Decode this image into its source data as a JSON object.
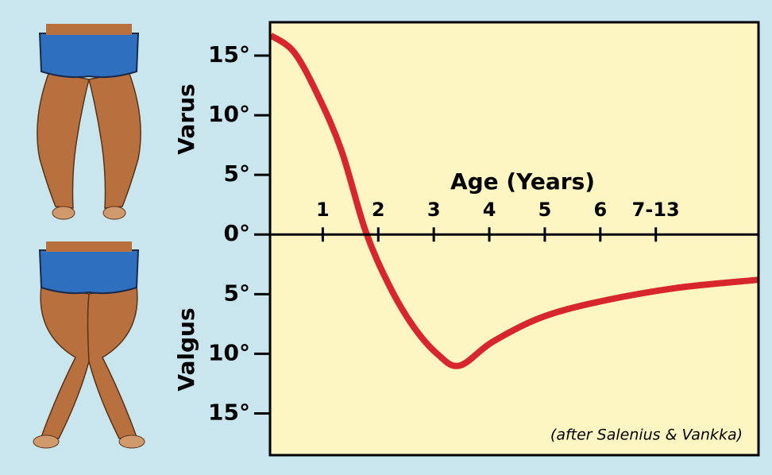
{
  "chart_data": {
    "type": "line",
    "xlabel": "Age (Years)",
    "annotations": [
      "Varus",
      "Valgus",
      "(after Salenius & Vankka)"
    ],
    "x": [
      0.06,
      0.48,
      0.91,
      1.34,
      1.77,
      2.2,
      2.63,
      3.06,
      3.46,
      4.06,
      4.91,
      5.91,
      7.34,
      8.84
    ],
    "series": [
      {
        "color": "#d7262c",
        "values": [
          16.7,
          15.3,
          11.7,
          7,
          0.3,
          -4.3,
          -7.7,
          -10,
          -11,
          -9,
          -7,
          -5.7,
          -4.5,
          -3.8
        ]
      }
    ],
    "xlim": [
      0.05,
      8.85
    ],
    "ylim": [
      -18.5,
      17.8
    ],
    "xticks": [
      1,
      2,
      3,
      4,
      5,
      6,
      {
        "value": 7,
        "label": "7-13"
      }
    ],
    "yticks": [
      {
        "value": 15,
        "label": "15°"
      },
      {
        "value": 10,
        "label": "10°"
      },
      {
        "value": 5,
        "label": "5°"
      },
      {
        "value": 0,
        "label": "0°"
      },
      {
        "value": -5,
        "label": "5°"
      },
      {
        "value": -10,
        "label": "10°"
      },
      {
        "value": -15,
        "label": "15°"
      }
    ]
  }
}
